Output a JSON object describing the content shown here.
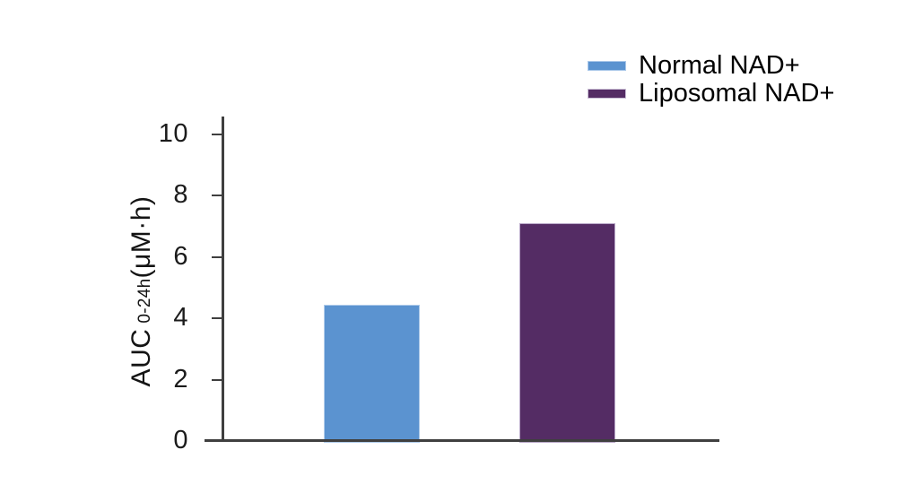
{
  "chart_data": {
    "type": "bar",
    "title": "",
    "xlabel": "",
    "ylabel": {
      "prefix": "AUC",
      "subscript": "0-24h",
      "suffix": "(μM·h)"
    },
    "categories": [
      "Normal NAD+",
      "Liposomal NAD+"
    ],
    "values": [
      4.45,
      7.1
    ],
    "bar_colors": [
      "#5B93D0",
      "#542C64"
    ],
    "bar_border_colors": [
      "#AFCBEA",
      "#B9A8C8"
    ],
    "yticks": [
      0,
      2,
      4,
      6,
      8,
      10
    ],
    "ylim": [
      0,
      10
    ],
    "grid": false,
    "axis_color": "#3F3F3F",
    "text_color": "#1B1B1B",
    "legend": {
      "position": "top-right",
      "items": [
        {
          "label": "Normal NAD+",
          "color": "#5B93D0",
          "border_color": "#A9C7E9"
        },
        {
          "label": "Liposomal NAD+",
          "color": "#542C64",
          "border_color": "#C8BCD4"
        }
      ]
    }
  }
}
